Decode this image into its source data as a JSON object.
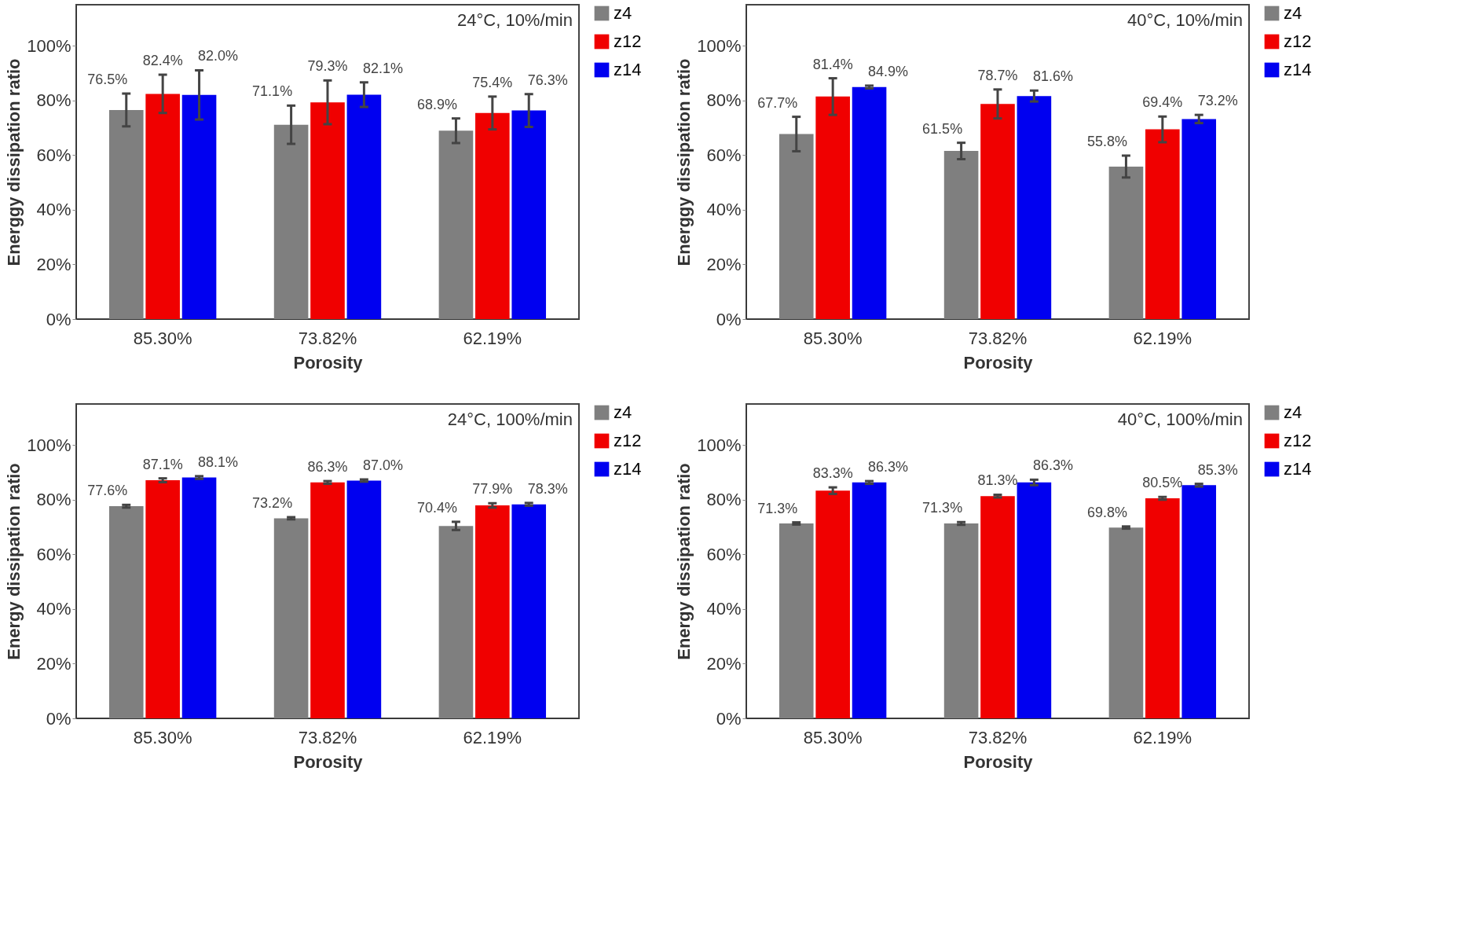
{
  "chart_data": [
    {
      "type": "bar",
      "xlabel": "Porosity",
      "ylabel": "Energgy dissipation ratio",
      "annotations": [
        "24°C, 10%/min"
      ],
      "categories": [
        "85.30%",
        "73.82%",
        "62.19%"
      ],
      "ylim": [
        0,
        115
      ],
      "yticks": [
        {
          "value": 0,
          "label": "0%"
        },
        {
          "value": 20,
          "label": "20%"
        },
        {
          "value": 40,
          "label": "40%"
        },
        {
          "value": 60,
          "label": "60%"
        },
        {
          "value": 80,
          "label": "80%"
        },
        {
          "value": 100,
          "label": "100%"
        }
      ],
      "legend": "right",
      "grid": false,
      "series": [
        {
          "name": "z4",
          "color": "#7f7f7f",
          "values": [
            76.5,
            71.1,
            68.9
          ],
          "errors": [
            6,
            7,
            4.5
          ],
          "value_labels": [
            "76.5%",
            "71.1%",
            "68.9%"
          ]
        },
        {
          "name": "z12",
          "color": "#f00000",
          "values": [
            82.4,
            79.3,
            75.4
          ],
          "errors": [
            7,
            8,
            6
          ],
          "value_labels": [
            "82.4%",
            "79.3%",
            "75.4%"
          ]
        },
        {
          "name": "z14",
          "color": "#0000f0",
          "values": [
            82.0,
            82.1,
            76.3
          ],
          "errors": [
            9,
            4.5,
            6
          ],
          "value_labels": [
            "82.0%",
            "82.1%",
            "76.3%"
          ]
        }
      ]
    },
    {
      "type": "bar",
      "xlabel": "Porosity",
      "ylabel": "Energgy dissipation ratio",
      "annotations": [
        "40°C, 10%/min"
      ],
      "categories": [
        "85.30%",
        "73.82%",
        "62.19%"
      ],
      "ylim": [
        0,
        115
      ],
      "yticks": [
        {
          "value": 0,
          "label": "0%"
        },
        {
          "value": 20,
          "label": "20%"
        },
        {
          "value": 40,
          "label": "40%"
        },
        {
          "value": 60,
          "label": "60%"
        },
        {
          "value": 80,
          "label": "80%"
        },
        {
          "value": 100,
          "label": "100%"
        }
      ],
      "legend": "right",
      "grid": false,
      "series": [
        {
          "name": "z4",
          "color": "#7f7f7f",
          "values": [
            67.7,
            61.5,
            55.8
          ],
          "errors": [
            6.3,
            3,
            4
          ],
          "value_labels": [
            "67.7%",
            "61.5%",
            "55.8%"
          ]
        },
        {
          "name": "z12",
          "color": "#f00000",
          "values": [
            81.4,
            78.7,
            69.4
          ],
          "errors": [
            6.7,
            5.3,
            4.7
          ],
          "value_labels": [
            "81.4%",
            "78.7%",
            "69.4%"
          ]
        },
        {
          "name": "z14",
          "color": "#0000f0",
          "values": [
            84.9,
            81.6,
            73.2
          ],
          "errors": [
            0.5,
            2,
            1.5
          ],
          "value_labels": [
            "84.9%",
            "81.6%",
            "73.2%"
          ]
        }
      ]
    },
    {
      "type": "bar",
      "xlabel": "Porosity",
      "ylabel": "Energy dissipation ratio",
      "annotations": [
        "24°C, 100%/min"
      ],
      "categories": [
        "85.30%",
        "73.82%",
        "62.19%"
      ],
      "ylim": [
        0,
        115
      ],
      "yticks": [
        {
          "value": 0,
          "label": "0%"
        },
        {
          "value": 20,
          "label": "20%"
        },
        {
          "value": 40,
          "label": "40%"
        },
        {
          "value": 60,
          "label": "60%"
        },
        {
          "value": 80,
          "label": "80%"
        },
        {
          "value": 100,
          "label": "100%"
        }
      ],
      "legend": "right",
      "grid": false,
      "series": [
        {
          "name": "z4",
          "color": "#7f7f7f",
          "values": [
            77.6,
            73.2,
            70.4
          ],
          "errors": [
            0.5,
            0.4,
            1.5
          ],
          "value_labels": [
            "77.6%",
            "73.2%",
            "70.4%"
          ]
        },
        {
          "name": "z12",
          "color": "#f00000",
          "values": [
            87.1,
            86.3,
            77.9
          ],
          "errors": [
            0.7,
            0.5,
            0.8
          ],
          "value_labels": [
            "87.1%",
            "86.3%",
            "77.9%"
          ]
        },
        {
          "name": "z14",
          "color": "#0000f0",
          "values": [
            88.1,
            87.0,
            78.3
          ],
          "errors": [
            0.5,
            0.4,
            0.5
          ],
          "value_labels": [
            "88.1%",
            "87.0%",
            "78.3%"
          ]
        }
      ]
    },
    {
      "type": "bar",
      "xlabel": "Porosity",
      "ylabel": "Energy dissipation ratio",
      "annotations": [
        "40°C, 100%/min"
      ],
      "categories": [
        "85.30%",
        "73.82%",
        "62.19%"
      ],
      "ylim": [
        0,
        115
      ],
      "yticks": [
        {
          "value": 0,
          "label": "0%"
        },
        {
          "value": 20,
          "label": "20%"
        },
        {
          "value": 40,
          "label": "40%"
        },
        {
          "value": 60,
          "label": "60%"
        },
        {
          "value": 80,
          "label": "80%"
        },
        {
          "value": 100,
          "label": "100%"
        }
      ],
      "legend": "right",
      "grid": false,
      "series": [
        {
          "name": "z4",
          "color": "#7f7f7f",
          "values": [
            71.3,
            71.3,
            69.8
          ],
          "errors": [
            0.4,
            0.5,
            0.4
          ],
          "value_labels": [
            "71.3%",
            "71.3%",
            "69.8%"
          ]
        },
        {
          "name": "z12",
          "color": "#f00000",
          "values": [
            83.3,
            81.3,
            80.5
          ],
          "errors": [
            1.2,
            0.5,
            0.5
          ],
          "value_labels": [
            "83.3%",
            "81.3%",
            "80.5%"
          ]
        },
        {
          "name": "z14",
          "color": "#0000f0",
          "values": [
            86.3,
            86.3,
            85.3
          ],
          "errors": [
            0.5,
            1.0,
            0.5
          ],
          "value_labels": [
            "86.3%",
            "86.3%",
            "85.3%"
          ]
        }
      ]
    }
  ]
}
